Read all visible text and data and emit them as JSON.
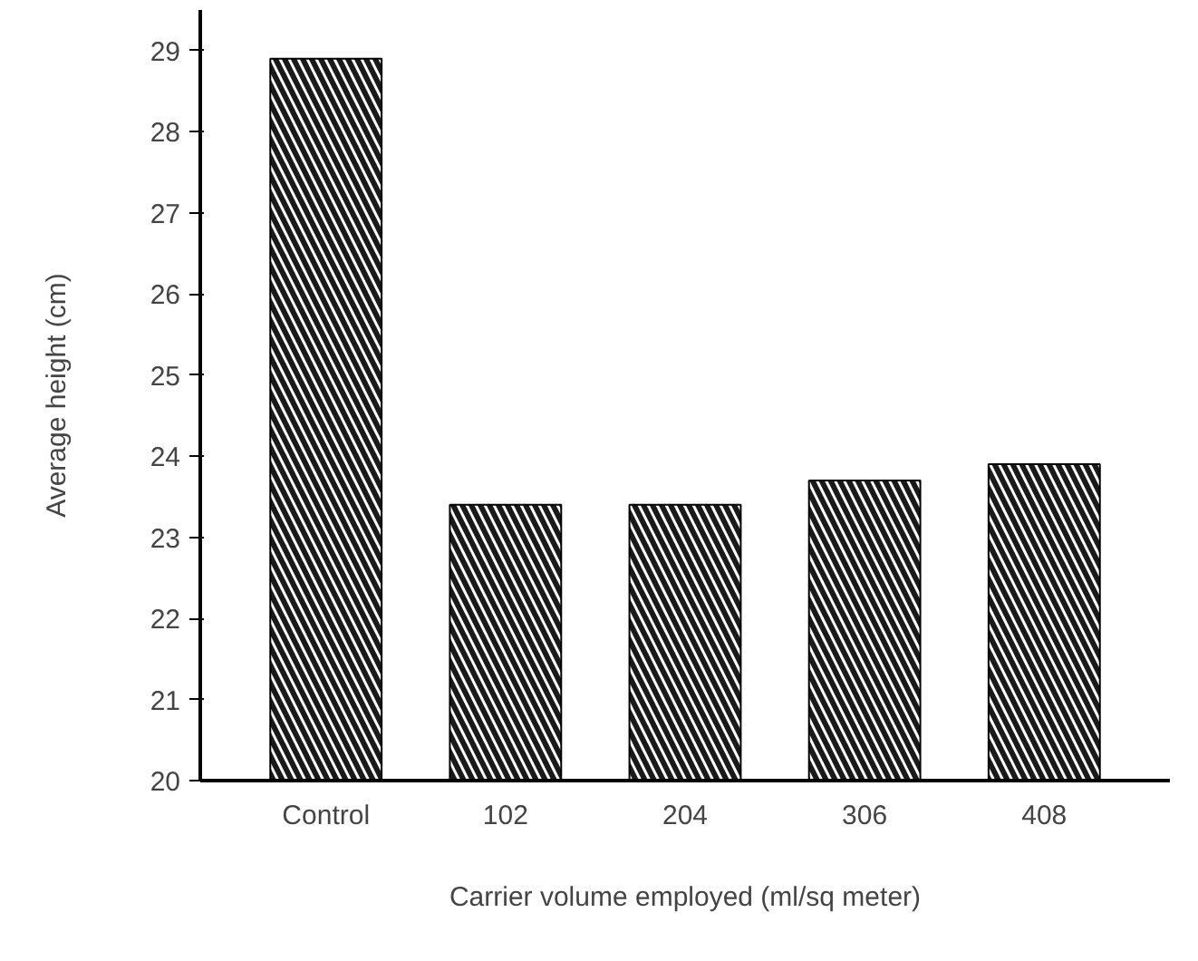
{
  "chart_data": {
    "type": "bar",
    "xlabel": "Carrier volume employed (ml/sq meter)",
    "ylabel": "Average height (cm)",
    "categories": [
      "Control",
      "102",
      "204",
      "306",
      "408"
    ],
    "values": [
      28.9,
      23.4,
      23.4,
      23.7,
      23.9
    ],
    "color": "#1a1a1a",
    "ylim": [
      20,
      29.5
    ],
    "yticks": [
      20,
      21,
      22,
      23,
      24,
      25,
      26,
      27,
      28,
      29
    ],
    "grid": false
  }
}
